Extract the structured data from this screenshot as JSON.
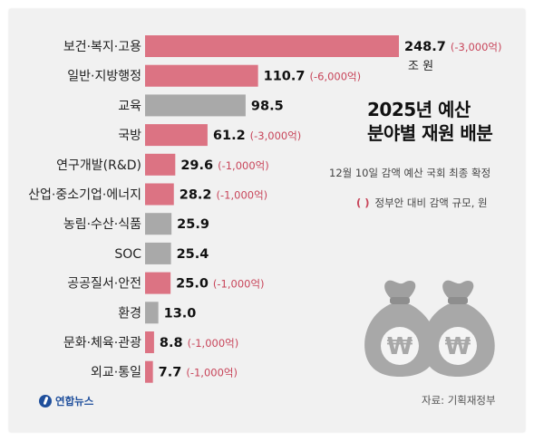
{
  "title_lines": [
    "2025년 예산",
    "분야별 재원 배분"
  ],
  "subtitle": "12월 10일 감액 예산 국회 최종 확정",
  "legend_note": {
    "paren": "(   )",
    "text": "정부안 대비 감액 규모, 원"
  },
  "source": "자료: 기획재정부",
  "logo_text": "연합뉴스",
  "unit_label": "조 원",
  "colors": {
    "reduced_bar": "#dc7383",
    "unchanged_bar": "#a9a9a9",
    "delta_text": "#c8455a"
  },
  "icons": [
    "money-bag-icon",
    "money-bag-icon"
  ],
  "chart_data": {
    "type": "bar",
    "orientation": "horizontal",
    "title": "2025년 예산 분야별 재원 배분",
    "unit": "조 원",
    "categories": [
      "보건·복지·고용",
      "일반·지방행정",
      "교육",
      "국방",
      "연구개발(R&D)",
      "산업·중소기업·에너지",
      "농림·수산·식품",
      "SOC",
      "공공질서·안전",
      "환경",
      "문화·체육·관광",
      "외교·통일"
    ],
    "values": [
      248.7,
      110.7,
      98.5,
      61.2,
      29.6,
      28.2,
      25.9,
      25.4,
      25.0,
      13.0,
      8.8,
      7.7
    ],
    "value_labels": [
      "248.7",
      "110.7",
      "98.5",
      "61.2",
      "29.6",
      "28.2",
      "25.9",
      "25.4",
      "25.0",
      "13.0",
      "8.8",
      "7.7"
    ],
    "reductions": [
      "(-3,000억)",
      "(-6,000억)",
      "",
      "(-3,000억)",
      "(-1,000억)",
      "(-1,000억)",
      "",
      "",
      "(-1,000억)",
      "",
      "(-1,000억)",
      "(-1,000억)"
    ],
    "reduced": [
      true,
      true,
      false,
      true,
      true,
      true,
      false,
      false,
      true,
      false,
      true,
      true
    ],
    "grid": false,
    "legend": "none"
  }
}
